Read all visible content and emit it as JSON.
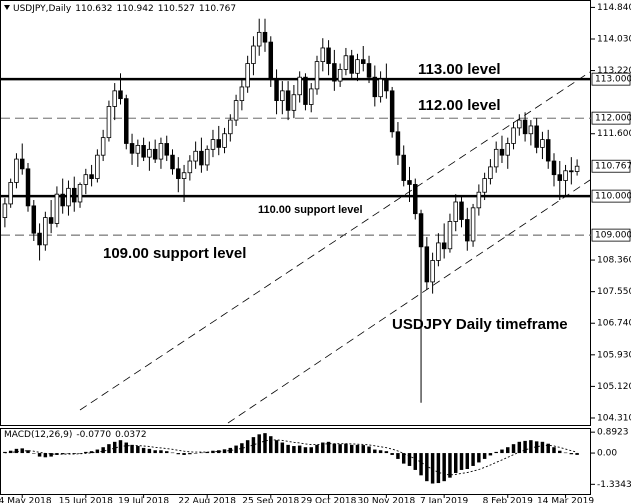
{
  "chart_data": {
    "type": "candlestick",
    "title": "USDJPY,Daily",
    "ylim": [
      104.13,
      115.03
    ],
    "yticks": [
      {
        "value": 114.84,
        "label": "114.840"
      },
      {
        "value": 114.03,
        "label": "114.030"
      },
      {
        "value": 113.22,
        "label": "113.220"
      },
      {
        "value": 111.6,
        "label": "111.600"
      },
      {
        "value": 108.36,
        "label": "108.360"
      },
      {
        "value": 107.55,
        "label": "107.550"
      },
      {
        "value": 106.74,
        "label": "106.740"
      },
      {
        "value": 105.93,
        "label": "105.930"
      },
      {
        "value": 105.12,
        "label": "105.120"
      },
      {
        "value": 104.31,
        "label": "104.310"
      }
    ],
    "grid": false,
    "up_color": "#ffffff",
    "down_color": "#000000",
    "categories": [
      null,
      null,
      null,
      "14 May 2018",
      null,
      null,
      null,
      null,
      null,
      null,
      null,
      null,
      null,
      null,
      "15 Jun 2018",
      null,
      null,
      null,
      null,
      null,
      null,
      null,
      null,
      null,
      "19 Jul 2018",
      null,
      null,
      null,
      null,
      null,
      null,
      null,
      null,
      null,
      null,
      "22 Aug 2018",
      null,
      null,
      null,
      null,
      null,
      null,
      null,
      null,
      null,
      null,
      "25 Sep 2018",
      null,
      null,
      null,
      null,
      null,
      null,
      null,
      null,
      null,
      "29 Oct 2018",
      null,
      null,
      null,
      null,
      null,
      null,
      null,
      null,
      null,
      "30 Nov 2018",
      null,
      null,
      null,
      null,
      null,
      null,
      null,
      null,
      null,
      "7 Jan 2019",
      null,
      null,
      null,
      null,
      null,
      null,
      null,
      null,
      null,
      null,
      "8 Feb 2019",
      null,
      null,
      null,
      null,
      null,
      null,
      null,
      null,
      null,
      "14 Mar 2019",
      null,
      null
    ],
    "ohlc": [
      [
        109.45,
        109.95,
        109.2,
        109.8
      ],
      [
        109.8,
        110.45,
        109.7,
        110.35
      ],
      [
        110.35,
        111.1,
        110.2,
        110.95
      ],
      [
        110.95,
        111.35,
        110.55,
        110.7
      ],
      [
        110.7,
        110.85,
        109.6,
        109.75
      ],
      [
        109.75,
        109.9,
        108.85,
        109.05
      ],
      [
        109.05,
        109.3,
        108.35,
        108.75
      ],
      [
        108.75,
        109.6,
        108.6,
        109.45
      ],
      [
        109.45,
        109.9,
        109.05,
        109.3
      ],
      [
        109.3,
        110.25,
        109.2,
        110.05
      ],
      [
        110.05,
        110.45,
        109.55,
        109.75
      ],
      [
        109.75,
        110.4,
        109.5,
        110.2
      ],
      [
        110.2,
        110.5,
        109.6,
        109.85
      ],
      [
        109.85,
        110.35,
        109.7,
        110.3
      ],
      [
        110.3,
        110.7,
        110.05,
        110.55
      ],
      [
        110.55,
        110.8,
        110.25,
        110.45
      ],
      [
        110.45,
        111.2,
        110.35,
        111.05
      ],
      [
        111.05,
        111.7,
        110.9,
        111.5
      ],
      [
        111.5,
        112.45,
        111.4,
        112.3
      ],
      [
        112.3,
        112.9,
        111.95,
        112.7
      ],
      [
        112.7,
        113.15,
        112.35,
        112.5
      ],
      [
        112.5,
        112.6,
        111.2,
        111.35
      ],
      [
        111.35,
        111.6,
        110.8,
        111.1
      ],
      [
        111.1,
        111.45,
        110.75,
        111.3
      ],
      [
        111.3,
        111.5,
        110.9,
        111.0
      ],
      [
        111.0,
        111.4,
        110.65,
        111.2
      ],
      [
        111.2,
        111.45,
        110.85,
        110.95
      ],
      [
        110.95,
        111.5,
        110.7,
        111.35
      ],
      [
        111.35,
        111.55,
        110.9,
        111.05
      ],
      [
        111.05,
        111.2,
        110.55,
        110.7
      ],
      [
        110.7,
        111.0,
        110.1,
        110.45
      ],
      [
        110.45,
        110.8,
        109.85,
        110.6
      ],
      [
        110.6,
        111.05,
        110.4,
        110.9
      ],
      [
        110.9,
        111.4,
        110.7,
        111.15
      ],
      [
        111.15,
        111.5,
        110.6,
        110.8
      ],
      [
        110.8,
        111.3,
        110.65,
        111.2
      ],
      [
        111.2,
        111.7,
        111.0,
        111.45
      ],
      [
        111.45,
        111.8,
        111.05,
        111.25
      ],
      [
        111.25,
        111.75,
        111.1,
        111.6
      ],
      [
        111.6,
        112.1,
        111.4,
        111.95
      ],
      [
        111.95,
        112.6,
        111.8,
        112.45
      ],
      [
        112.45,
        113.0,
        112.2,
        112.8
      ],
      [
        112.8,
        113.6,
        112.65,
        113.4
      ],
      [
        113.4,
        114.1,
        113.1,
        113.85
      ],
      [
        113.85,
        114.55,
        113.6,
        114.2
      ],
      [
        114.2,
        114.55,
        113.7,
        113.95
      ],
      [
        113.95,
        114.1,
        112.8,
        113.0
      ],
      [
        113.0,
        113.25,
        112.1,
        112.45
      ],
      [
        112.45,
        112.95,
        112.1,
        112.7
      ],
      [
        112.7,
        112.95,
        111.95,
        112.2
      ],
      [
        112.2,
        112.85,
        112.0,
        112.6
      ],
      [
        112.6,
        113.2,
        112.4,
        113.05
      ],
      [
        113.05,
        113.15,
        112.2,
        112.35
      ],
      [
        112.35,
        112.9,
        112.15,
        112.75
      ],
      [
        112.75,
        113.6,
        112.6,
        113.45
      ],
      [
        113.45,
        114.05,
        113.2,
        113.8
      ],
      [
        113.8,
        114.0,
        113.1,
        113.4
      ],
      [
        113.4,
        113.75,
        112.7,
        112.95
      ],
      [
        112.95,
        113.4,
        112.8,
        113.25
      ],
      [
        113.25,
        113.8,
        113.1,
        113.6
      ],
      [
        113.6,
        113.75,
        113.0,
        113.15
      ],
      [
        113.15,
        113.65,
        112.95,
        113.5
      ],
      [
        113.5,
        113.85,
        113.2,
        113.4
      ],
      [
        113.4,
        113.6,
        112.9,
        113.05
      ],
      [
        113.05,
        113.35,
        112.3,
        112.55
      ],
      [
        112.55,
        113.2,
        112.4,
        113.0
      ],
      [
        113.0,
        113.4,
        112.5,
        112.7
      ],
      [
        112.7,
        112.8,
        111.5,
        111.65
      ],
      [
        111.65,
        111.9,
        110.8,
        111.05
      ],
      [
        111.05,
        111.3,
        110.25,
        110.4
      ],
      [
        110.4,
        110.75,
        109.85,
        110.3
      ],
      [
        110.3,
        110.45,
        109.4,
        109.55
      ],
      [
        109.55,
        109.65,
        104.7,
        108.7
      ],
      [
        108.7,
        108.95,
        107.6,
        107.8
      ],
      [
        107.8,
        108.55,
        107.5,
        108.35
      ],
      [
        108.35,
        109.05,
        108.2,
        108.8
      ],
      [
        108.8,
        109.3,
        108.4,
        108.65
      ],
      [
        108.65,
        109.55,
        108.55,
        109.35
      ],
      [
        109.35,
        110.05,
        109.1,
        109.85
      ],
      [
        109.85,
        110.0,
        109.2,
        109.4
      ],
      [
        109.4,
        109.7,
        108.6,
        108.85
      ],
      [
        108.85,
        109.8,
        108.7,
        109.7
      ],
      [
        109.7,
        110.3,
        109.5,
        110.1
      ],
      [
        110.1,
        110.6,
        109.9,
        110.45
      ],
      [
        110.45,
        110.95,
        110.3,
        110.75
      ],
      [
        110.75,
        111.4,
        110.6,
        111.2
      ],
      [
        111.2,
        111.55,
        110.85,
        111.05
      ],
      [
        111.05,
        111.5,
        110.7,
        111.35
      ],
      [
        111.35,
        111.9,
        111.2,
        111.75
      ],
      [
        111.75,
        112.1,
        111.55,
        111.95
      ],
      [
        111.95,
        112.15,
        111.4,
        111.6
      ],
      [
        111.6,
        111.95,
        111.3,
        111.8
      ],
      [
        111.8,
        112.0,
        111.1,
        111.25
      ],
      [
        111.25,
        111.65,
        110.95,
        111.45
      ],
      [
        111.45,
        111.7,
        110.7,
        110.9
      ],
      [
        110.9,
        111.1,
        110.25,
        110.55
      ],
      [
        110.55,
        110.9,
        109.9,
        110.4
      ],
      [
        110.4,
        110.8,
        110.0,
        110.65
      ],
      [
        110.65,
        111.0,
        110.3,
        110.63
      ],
      [
        110.632,
        110.942,
        110.527,
        110.767
      ]
    ],
    "hlines": [
      {
        "value": 113,
        "label": "113.000",
        "style": "solid"
      },
      {
        "value": 112,
        "label": "112.000",
        "style": "dashed"
      },
      {
        "value": 110,
        "label": "110.000",
        "style": "solid"
      },
      {
        "value": 109,
        "label": "109.000",
        "style": "dashed"
      }
    ],
    "annotations": [
      "113.00 level",
      "112.00 level",
      "110.00 support level",
      "109.00 support level",
      "USDJPY Daily timeframe"
    ],
    "macd": {
      "name": "MACD(12,26,9)",
      "ylim": [
        -1.79,
        1.07
      ],
      "yticks": [
        0.8923,
        {
          "value": 0,
          "label": "0.00"
        },
        -1.3343
      ],
      "histogram": {
        "color": "#000000",
        "values": [
          0.05,
          0.1,
          0.18,
          0.2,
          0.12,
          -0.02,
          -0.15,
          -0.18,
          -0.15,
          -0.08,
          -0.05,
          -0.02,
          -0.03,
          0.0,
          0.05,
          0.08,
          0.15,
          0.25,
          0.38,
          0.48,
          0.55,
          0.45,
          0.35,
          0.3,
          0.22,
          0.18,
          0.12,
          0.12,
          0.08,
          0.02,
          -0.05,
          -0.08,
          -0.05,
          0.0,
          0.02,
          0.05,
          0.1,
          0.12,
          0.16,
          0.22,
          0.32,
          0.42,
          0.55,
          0.68,
          0.8,
          0.85,
          0.72,
          0.55,
          0.45,
          0.35,
          0.3,
          0.32,
          0.25,
          0.25,
          0.35,
          0.45,
          0.48,
          0.4,
          0.38,
          0.4,
          0.35,
          0.35,
          0.34,
          0.28,
          0.15,
          0.12,
          0.08,
          -0.08,
          -0.25,
          -0.45,
          -0.55,
          -0.72,
          -0.95,
          -1.2,
          -1.3,
          -1.28,
          -1.2,
          -1.05,
          -0.85,
          -0.72,
          -0.68,
          -0.55,
          -0.4,
          -0.25,
          -0.1,
          0.05,
          0.15,
          0.25,
          0.38,
          0.48,
          0.52,
          0.55,
          0.5,
          0.48,
          0.4,
          0.25,
          0.1,
          0.02,
          -0.05,
          -0.077
        ],
        "value_labels": [
          null,
          null,
          null,
          null,
          null,
          null,
          null,
          null,
          null,
          null,
          null,
          null,
          null,
          null,
          null,
          null,
          null,
          null,
          null,
          null,
          null,
          null,
          null,
          null,
          null,
          null,
          null,
          null,
          null,
          null,
          null,
          null,
          null,
          null,
          null,
          null,
          null,
          null,
          null,
          null,
          null,
          null,
          null,
          null,
          null,
          null,
          null,
          null,
          null,
          null,
          null,
          null,
          null,
          null,
          null,
          null,
          null,
          null,
          null,
          null,
          null,
          null,
          null,
          null,
          null,
          null,
          null,
          null,
          null,
          null,
          null,
          null,
          null,
          null,
          null,
          null,
          null,
          null,
          null,
          null,
          null,
          null,
          null,
          null,
          null,
          null,
          null,
          null,
          null,
          null,
          null,
          null,
          null,
          null,
          null,
          null,
          null,
          null,
          null,
          "-0.0770"
        ]
      },
      "signal": {
        "color": "#000000",
        "style": "dotted",
        "values": [
          0.01,
          0.03,
          0.06,
          0.09,
          0.1,
          0.08,
          0.03,
          -0.01,
          -0.04,
          -0.05,
          -0.05,
          -0.04,
          -0.04,
          -0.03,
          -0.01,
          0.01,
          0.04,
          0.08,
          0.14,
          0.21,
          0.28,
          0.31,
          0.32,
          0.32,
          0.3,
          0.28,
          0.24,
          0.22,
          0.19,
          0.16,
          0.12,
          0.08,
          0.05,
          0.04,
          0.04,
          0.04,
          0.05,
          0.07,
          0.08,
          0.11,
          0.15,
          0.2,
          0.27,
          0.35,
          0.44,
          0.52,
          0.56,
          0.56,
          0.54,
          0.5,
          0.46,
          0.43,
          0.39,
          0.36,
          0.36,
          0.38,
          0.4,
          0.4,
          0.4,
          0.4,
          0.39,
          0.38,
          0.37,
          0.35,
          0.31,
          0.27,
          0.23,
          0.17,
          0.09,
          -0.02,
          -0.13,
          -0.25,
          -0.39,
          -0.55,
          -0.7,
          -0.82,
          -0.9,
          -0.93,
          -0.91,
          -0.87,
          -0.83,
          -0.77,
          -0.7,
          -0.61,
          -0.51,
          -0.4,
          -0.29,
          -0.18,
          -0.07,
          0.04,
          0.13,
          0.21,
          0.27,
          0.31,
          0.33,
          0.3,
          0.24,
          0.17,
          0.1,
          0.0372
        ]
      }
    }
  }
}
